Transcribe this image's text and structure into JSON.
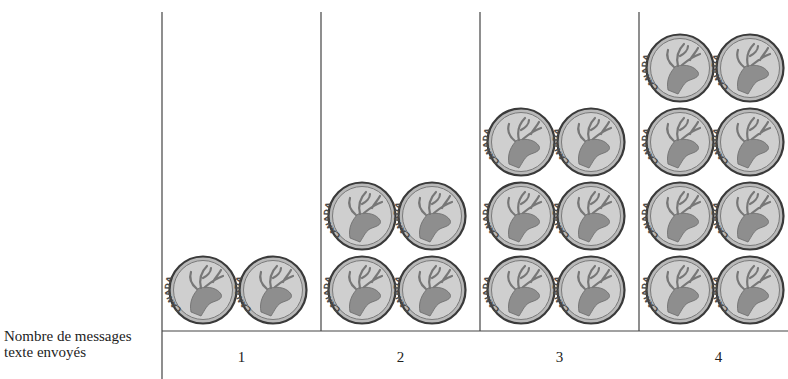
{
  "chart_data": {
    "type": "pictograph",
    "x_label": "Nombre de messages texte envoyés",
    "icon_label": "CANADA",
    "categories": [
      "1",
      "2",
      "3",
      "4"
    ],
    "values": [
      2,
      4,
      6,
      8
    ]
  }
}
